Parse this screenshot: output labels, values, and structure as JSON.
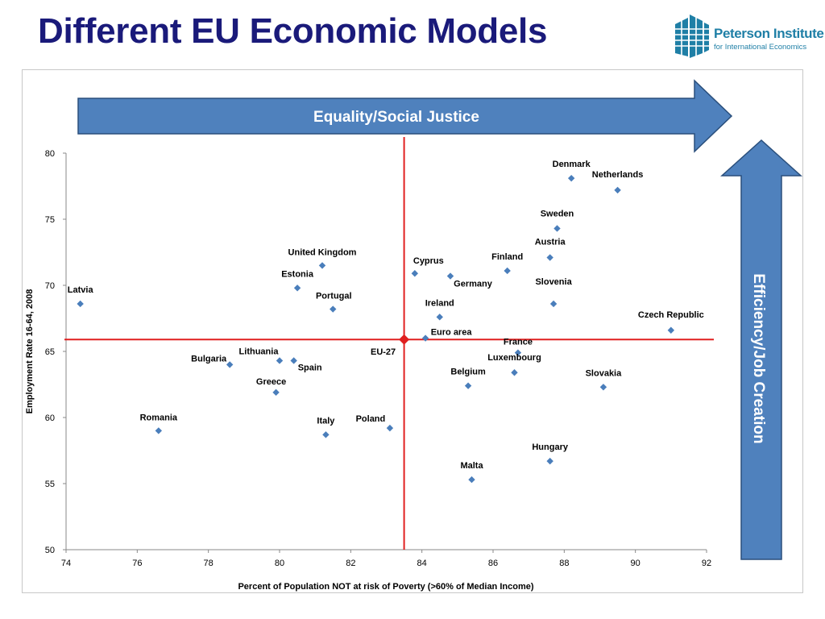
{
  "slide": {
    "title": "Different EU Economic Models"
  },
  "logo": {
    "name": "Peterson Institute",
    "subtitle": "for International Economics",
    "color": "#1f7fa6"
  },
  "arrows": {
    "horizontal_label": "Equality/Social Justice",
    "vertical_label": "Efficiency/Job Creation",
    "fill_color": "#4f81bd",
    "stroke_color": "#2a4f7c"
  },
  "colors": {
    "point": "#4a7ebb",
    "reference": "#e02020",
    "reference_point": "#e02020"
  },
  "chart_data": {
    "type": "scatter",
    "xlabel": "Percent of Population  NOT at risk of Poverty (>60% of Median Income)",
    "ylabel": "Employment Rate 16-64, 2008",
    "xlim": [
      74,
      92
    ],
    "ylim": [
      50,
      80
    ],
    "x_ticks": [
      74,
      76,
      78,
      80,
      82,
      84,
      86,
      88,
      90,
      92
    ],
    "y_ticks": [
      50,
      55,
      60,
      65,
      70,
      75,
      80
    ],
    "grid": false,
    "points": [
      {
        "label": "Latvia",
        "x": 74.4,
        "y": 68.6
      },
      {
        "label": "Romania",
        "x": 76.6,
        "y": 59.0
      },
      {
        "label": "Bulgaria",
        "x": 78.6,
        "y": 64.0
      },
      {
        "label": "Lithuania",
        "x": 80.0,
        "y": 64.3
      },
      {
        "label": "Spain",
        "x": 80.4,
        "y": 64.3
      },
      {
        "label": "Greece",
        "x": 79.9,
        "y": 61.9
      },
      {
        "label": "Estonia",
        "x": 80.5,
        "y": 69.8
      },
      {
        "label": "United Kingdom",
        "x": 81.2,
        "y": 71.5
      },
      {
        "label": "Portugal",
        "x": 81.5,
        "y": 68.2
      },
      {
        "label": "Italy",
        "x": 81.3,
        "y": 58.7
      },
      {
        "label": "Poland",
        "x": 83.1,
        "y": 59.2
      },
      {
        "label": "Cyprus",
        "x": 83.8,
        "y": 70.9
      },
      {
        "label": "Germany",
        "x": 84.8,
        "y": 70.7
      },
      {
        "label": "Ireland",
        "x": 84.5,
        "y": 67.6
      },
      {
        "label": "Euro area",
        "x": 84.1,
        "y": 66.0
      },
      {
        "label": "Belgium",
        "x": 85.3,
        "y": 62.4
      },
      {
        "label": "Malta",
        "x": 85.4,
        "y": 55.3
      },
      {
        "label": "Finland",
        "x": 86.4,
        "y": 71.1
      },
      {
        "label": "France",
        "x": 86.7,
        "y": 64.9
      },
      {
        "label": "Luxembourg",
        "x": 86.6,
        "y": 63.4
      },
      {
        "label": "Austria",
        "x": 87.6,
        "y": 72.1
      },
      {
        "label": "Sweden",
        "x": 87.8,
        "y": 74.3
      },
      {
        "label": "Slovenia",
        "x": 87.7,
        "y": 68.6
      },
      {
        "label": "Hungary",
        "x": 87.6,
        "y": 56.7
      },
      {
        "label": "Denmark",
        "x": 88.2,
        "y": 78.1
      },
      {
        "label": "Netherlands",
        "x": 89.5,
        "y": 77.2
      },
      {
        "label": "Slovakia",
        "x": 89.1,
        "y": 62.3
      },
      {
        "label": "Czech Republic",
        "x": 91.0,
        "y": 66.6
      }
    ],
    "reference": {
      "label": "EU-27",
      "x": 83.5,
      "y": 65.9
    }
  }
}
